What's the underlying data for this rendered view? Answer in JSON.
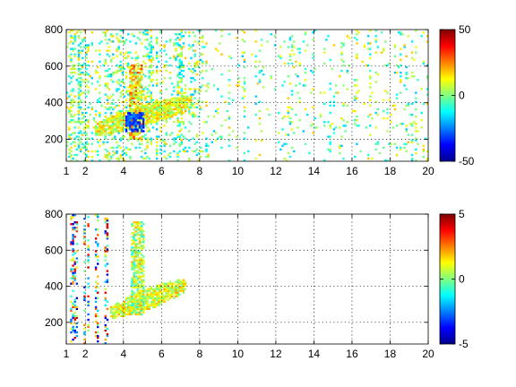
{
  "chart_data": [
    {
      "type": "heatmap",
      "title": "",
      "xlabel": "",
      "ylabel": "",
      "xlim": [
        1,
        20
      ],
      "ylim": [
        80,
        800
      ],
      "xticks": [
        1,
        2,
        4,
        6,
        8,
        10,
        12,
        14,
        16,
        18,
        20
      ],
      "yticks": [
        200,
        400,
        600,
        800
      ],
      "grid": true,
      "colormap": "jet",
      "colorbar": {
        "range": [
          -50,
          50
        ],
        "ticks": [
          -50,
          0,
          50
        ]
      },
      "features": [
        {
          "kind": "diagonal-band",
          "x": [
            2.5,
            7.5
          ],
          "y": [
            250,
            400
          ],
          "typical_value": 10
        },
        {
          "kind": "dense-column",
          "x": [
            4.3,
            4.9
          ],
          "y": [
            200,
            600
          ],
          "typical_value": 15
        },
        {
          "kind": "cold-blob",
          "x": [
            4.1,
            5.0
          ],
          "y": [
            240,
            340
          ],
          "typical_value": -30
        },
        {
          "kind": "scattered-noise",
          "x": [
            1,
            20
          ],
          "y": [
            80,
            800
          ],
          "typical_value": 0
        }
      ]
    },
    {
      "type": "heatmap",
      "title": "",
      "xlabel": "",
      "ylabel": "",
      "xlim": [
        1,
        20
      ],
      "ylim": [
        80,
        800
      ],
      "xticks": [
        1,
        2,
        4,
        6,
        8,
        10,
        12,
        14,
        16,
        18,
        20
      ],
      "yticks": [
        200,
        400,
        600,
        800
      ],
      "grid": true,
      "colormap": "jet",
      "colorbar": {
        "range": [
          -5,
          5
        ],
        "ticks": [
          -5,
          0,
          5
        ]
      },
      "features": [
        {
          "kind": "diagonal-band",
          "x": [
            3.3,
            7.2
          ],
          "y": [
            250,
            400
          ],
          "typical_value": 1
        },
        {
          "kind": "dense-column",
          "x": [
            4.4,
            5.0
          ],
          "y": [
            240,
            750
          ],
          "typical_value": 0.5
        },
        {
          "kind": "vertical-streaks",
          "x": [
            1.2,
            3.2
          ],
          "y": [
            80,
            800
          ],
          "typical_value": 0
        }
      ]
    }
  ]
}
